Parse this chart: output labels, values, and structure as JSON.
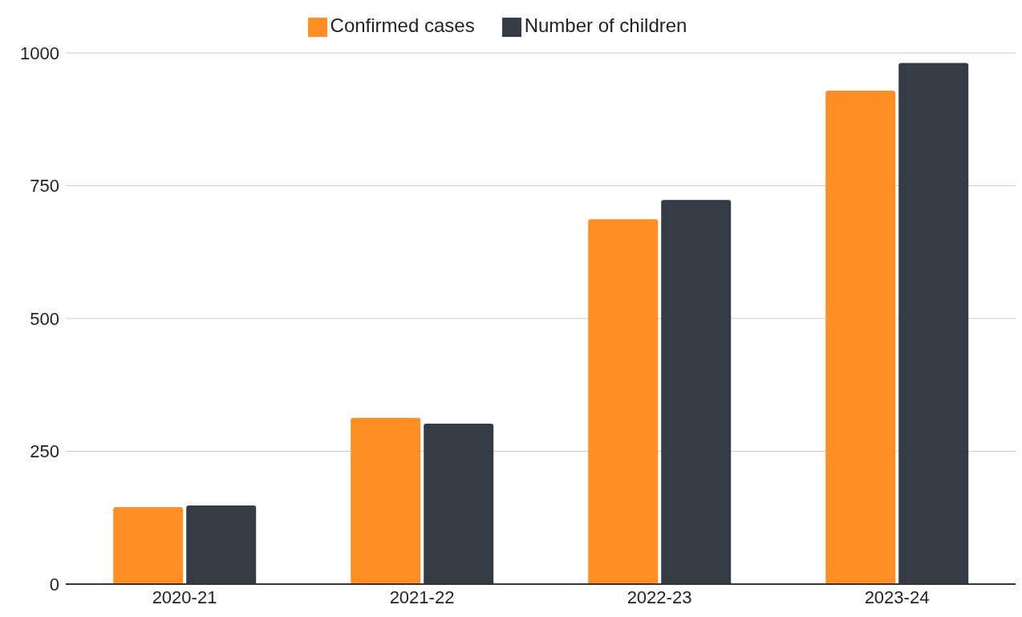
{
  "chart_data": {
    "type": "bar",
    "categories": [
      "2020-21",
      "2021-22",
      "2022-23",
      "2023-24"
    ],
    "series": [
      {
        "name": "Confirmed cases",
        "color": "#ff8f22",
        "values": [
          145,
          313,
          687,
          929
        ]
      },
      {
        "name": "Number of children",
        "color": "#363c46",
        "values": [
          148,
          302,
          723,
          981
        ]
      }
    ],
    "ylim": [
      0,
      1000
    ],
    "yticks": [
      0,
      250,
      500,
      750,
      1000
    ],
    "grid": "y",
    "legend": "top"
  }
}
